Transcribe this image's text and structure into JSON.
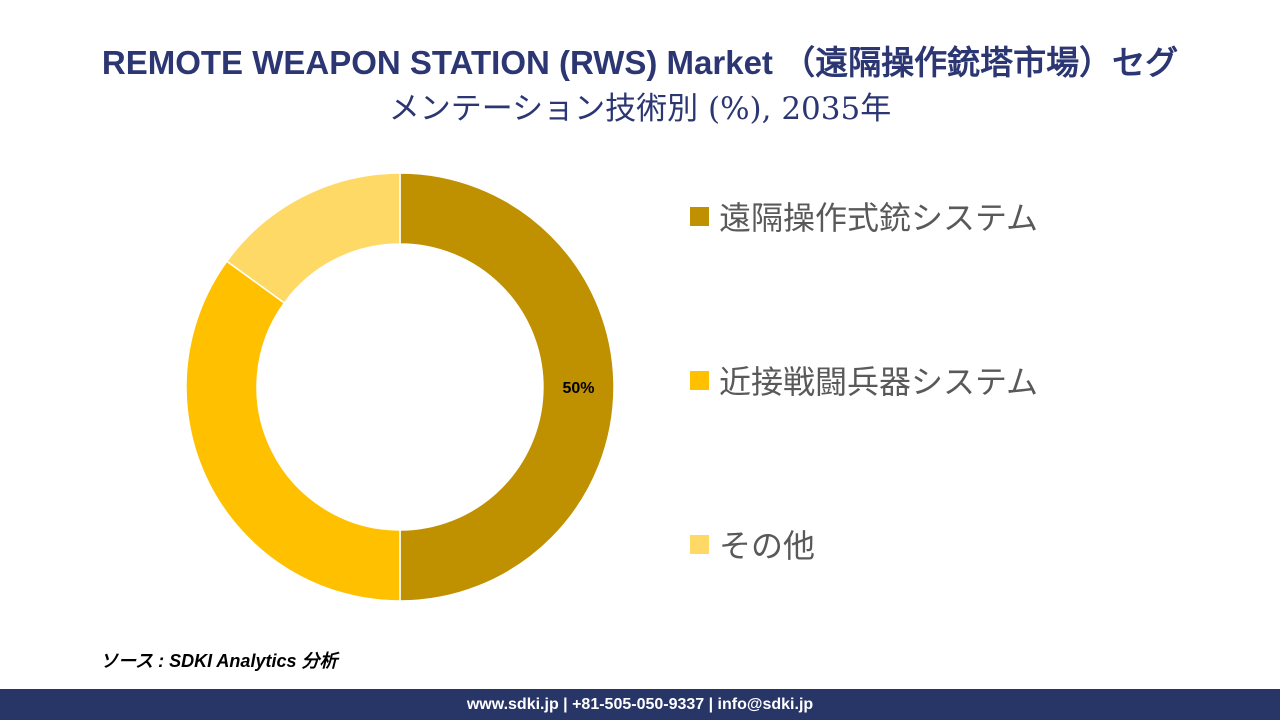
{
  "title": {
    "line1": "REMOTE WEAPON STATION (RWS) Market （遠隔操作銃塔市場）セグ",
    "line2": "メンテーション技術別 (%), 2035年"
  },
  "chart_data": {
    "type": "pie",
    "variant": "donut",
    "categories": [
      "遠隔操作式銃システム",
      "近接戦闘兵器システム",
      "その他"
    ],
    "values": [
      50,
      35,
      15
    ],
    "colors": [
      "#BF9000",
      "#FFC000",
      "#FFD966"
    ],
    "data_labels": [
      "50%",
      "",
      ""
    ],
    "legend_position": "right"
  },
  "source": "ソース : SDKI Analytics 分析",
  "footer": "www.sdki.jp | +81-505-050-9337 | info@sdki.jp"
}
